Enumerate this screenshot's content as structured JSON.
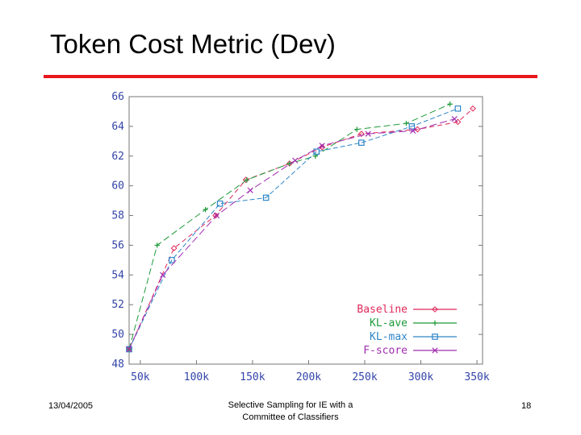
{
  "slide": {
    "title": "Token Cost Metric (Dev)"
  },
  "footer": {
    "date": "13/04/2005",
    "center_line1": "Selective Sampling for IE with a",
    "center_line2": "Committee of Classifiers",
    "page_number": "18"
  },
  "chart_data": {
    "type": "line",
    "title": "",
    "xlabel": "",
    "ylabel": "",
    "xlim": [
      40000,
      355000
    ],
    "ylim": [
      48,
      66
    ],
    "x_ticks": [
      50000,
      100000,
      150000,
      200000,
      250000,
      300000,
      350000
    ],
    "x_tick_labels": [
      "50k",
      "100k",
      "150k",
      "200k",
      "250k",
      "300k",
      "350k"
    ],
    "y_ticks": [
      48,
      50,
      52,
      54,
      56,
      58,
      60,
      62,
      64,
      66
    ],
    "y_tick_labels": [
      "48",
      "50",
      "52",
      "54",
      "56",
      "58",
      "60",
      "62",
      "64",
      "66"
    ],
    "grid": false,
    "legend_position": "bottom-right",
    "series": [
      {
        "name": "Baseline",
        "color": "#e0285a",
        "marker": "diamond",
        "dash": "6,4",
        "x": [
          40000,
          80000,
          117000,
          144000,
          183000,
          212000,
          247000,
          297000,
          333000,
          365000
        ],
        "y": [
          49.0,
          55.8,
          58.0,
          60.4,
          61.5,
          62.6,
          63.5,
          63.8,
          64.3,
          65.2
        ]
      },
      {
        "name": "KL-ave",
        "color": "#1f9a3a",
        "marker": "plus",
        "dash": "8,4",
        "x": [
          40000,
          65000,
          108000,
          145000,
          183000,
          206000,
          243000,
          287000,
          326000
        ],
        "y": [
          49.0,
          56.0,
          58.4,
          60.4,
          61.5,
          62.0,
          63.8,
          64.2,
          65.5
        ]
      },
      {
        "name": "KL-max",
        "color": "#2f86c8",
        "marker": "square",
        "dash": "6,3",
        "x": [
          40000,
          78000,
          121000,
          162000,
          207000,
          247000,
          292000,
          333000
        ],
        "y": [
          49.0,
          55.0,
          58.8,
          59.2,
          62.3,
          62.9,
          64.0,
          65.2
        ]
      },
      {
        "name": "F-score",
        "color": "#a02db0",
        "marker": "x",
        "dash": "9,4",
        "x": [
          40000,
          70000,
          118000,
          148000,
          188000,
          212000,
          253000,
          293000,
          330000
        ],
        "y": [
          49.0,
          54.0,
          58.0,
          59.7,
          61.7,
          62.7,
          63.5,
          63.7,
          64.5
        ]
      }
    ]
  }
}
